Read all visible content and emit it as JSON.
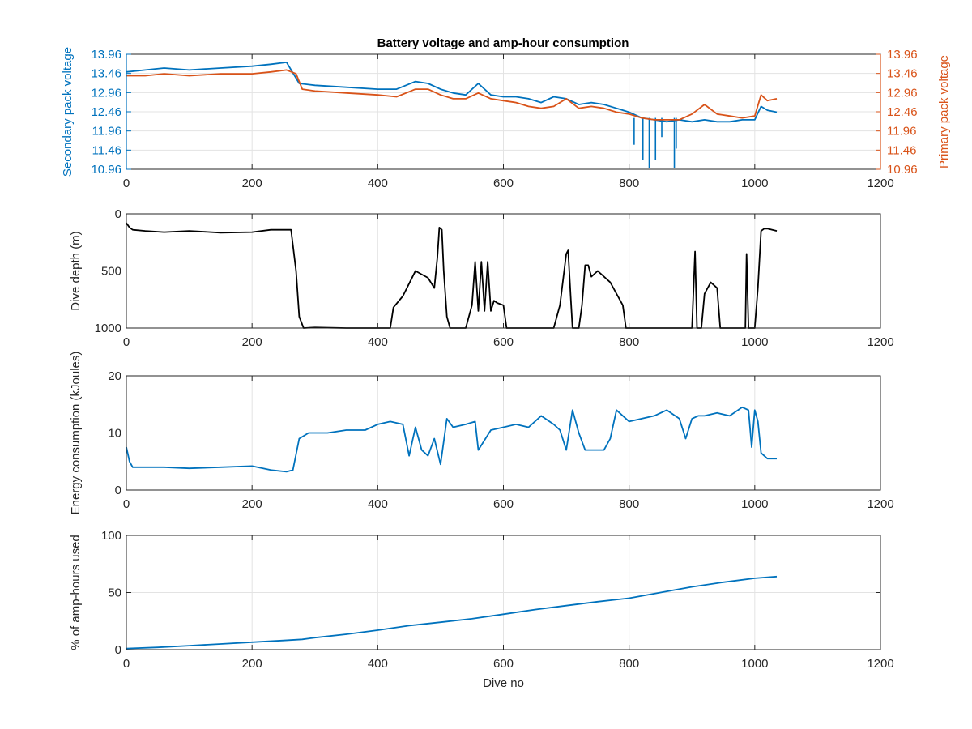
{
  "figure": {
    "title": "Battery voltage and amp-hour consumption"
  },
  "chart_data": [
    {
      "type": "line",
      "id": "voltage",
      "title": "Battery voltage and amp-hour consumption",
      "xlabel": "",
      "ylabel": "Secondary pack voltage",
      "ylabel_right": "Primary pack voltage",
      "xlim": [
        0,
        1200
      ],
      "ylim": [
        10.96,
        13.96
      ],
      "xticks": [
        0,
        200,
        400,
        600,
        800,
        1000,
        1200
      ],
      "yticks": [
        10.96,
        11.46,
        11.96,
        12.46,
        12.96,
        13.46,
        13.96
      ],
      "yticks_right": [
        10.96,
        11.46,
        11.96,
        12.46,
        12.96,
        13.46,
        13.96
      ],
      "grid": true,
      "series": [
        {
          "axis": "left",
          "color": "#0072BD",
          "x": [
            0,
            30,
            60,
            100,
            150,
            200,
            230,
            255,
            275,
            300,
            350,
            400,
            430,
            460,
            480,
            500,
            520,
            540,
            560,
            580,
            600,
            620,
            640,
            660,
            680,
            700,
            720,
            740,
            760,
            780,
            800,
            820,
            840,
            860,
            880,
            900,
            920,
            940,
            960,
            980,
            1000,
            1010,
            1020,
            1035
          ],
          "y": [
            13.5,
            13.55,
            13.6,
            13.55,
            13.6,
            13.65,
            13.7,
            13.75,
            13.2,
            13.15,
            13.1,
            13.05,
            13.05,
            13.25,
            13.2,
            13.05,
            12.95,
            12.9,
            13.2,
            12.9,
            12.85,
            12.85,
            12.8,
            12.7,
            12.85,
            12.8,
            12.65,
            12.7,
            12.65,
            12.55,
            12.45,
            12.3,
            12.25,
            12.2,
            12.25,
            12.2,
            12.25,
            12.2,
            12.2,
            12.25,
            12.25,
            12.6,
            12.5,
            12.45
          ],
          "spikes_x": [
            808,
            822,
            832,
            842,
            852,
            872,
            875
          ],
          "spikes_y": [
            11.6,
            11.2,
            11.0,
            11.2,
            11.8,
            11.0,
            11.5
          ]
        },
        {
          "axis": "right",
          "color": "#D95319",
          "x": [
            0,
            30,
            60,
            100,
            150,
            200,
            230,
            255,
            270,
            280,
            300,
            350,
            400,
            430,
            460,
            480,
            500,
            520,
            540,
            560,
            580,
            600,
            620,
            640,
            660,
            680,
            700,
            720,
            740,
            760,
            780,
            800,
            820,
            840,
            860,
            880,
            900,
            920,
            940,
            960,
            980,
            1000,
            1010,
            1020,
            1035
          ],
          "y": [
            13.4,
            13.4,
            13.45,
            13.4,
            13.45,
            13.45,
            13.5,
            13.55,
            13.45,
            13.05,
            13.0,
            12.95,
            12.9,
            12.85,
            13.05,
            13.05,
            12.9,
            12.8,
            12.8,
            12.95,
            12.8,
            12.75,
            12.7,
            12.6,
            12.55,
            12.6,
            12.8,
            12.55,
            12.6,
            12.55,
            12.45,
            12.4,
            12.3,
            12.25,
            12.25,
            12.25,
            12.4,
            12.65,
            12.4,
            12.35,
            12.3,
            12.35,
            12.9,
            12.75,
            12.8
          ]
        }
      ]
    },
    {
      "type": "line",
      "id": "depth",
      "xlabel": "",
      "ylabel": "Dive depth (m)",
      "xlim": [
        0,
        1200
      ],
      "ylim": [
        0,
        1000
      ],
      "y_reversed": true,
      "xticks": [
        0,
        200,
        400,
        600,
        800,
        1000,
        1200
      ],
      "yticks": [
        0,
        500,
        1000
      ],
      "grid": true,
      "series": [
        {
          "color": "#000000",
          "x": [
            0,
            5,
            10,
            30,
            60,
            100,
            150,
            200,
            230,
            262,
            270,
            275,
            282,
            300,
            350,
            400,
            420,
            425,
            440,
            460,
            480,
            490,
            495,
            498,
            502,
            505,
            510,
            515,
            520,
            540,
            550,
            555,
            560,
            565,
            570,
            575,
            580,
            585,
            590,
            600,
            605,
            610,
            650,
            680,
            690,
            700,
            703,
            707,
            710,
            720,
            725,
            730,
            735,
            740,
            750,
            770,
            790,
            795,
            800,
            850,
            895,
            900,
            905,
            908,
            910,
            915,
            920,
            930,
            940,
            945,
            950,
            980,
            985,
            987,
            990,
            995,
            1000,
            1005,
            1010,
            1015,
            1020,
            1035
          ],
          "y": [
            80,
            120,
            140,
            150,
            160,
            150,
            165,
            160,
            140,
            140,
            500,
            900,
            1000,
            995,
            1000,
            1000,
            1000,
            820,
            720,
            500,
            560,
            650,
            380,
            120,
            140,
            500,
            900,
            1000,
            1000,
            1000,
            800,
            420,
            850,
            420,
            850,
            420,
            850,
            760,
            780,
            800,
            1000,
            1000,
            1000,
            1000,
            800,
            350,
            320,
            720,
            1000,
            1000,
            800,
            450,
            450,
            550,
            500,
            600,
            800,
            1000,
            1000,
            1000,
            1000,
            1000,
            330,
            1000,
            1000,
            1000,
            700,
            600,
            650,
            1000,
            1000,
            1000,
            1000,
            350,
            1000,
            1000,
            1000,
            650,
            150,
            130,
            130,
            150
          ]
        }
      ]
    },
    {
      "type": "line",
      "id": "energy",
      "xlabel": "",
      "ylabel": "Energy consumption (kJoules)",
      "xlim": [
        0,
        1200
      ],
      "ylim": [
        0,
        20
      ],
      "xticks": [
        0,
        200,
        400,
        600,
        800,
        1000,
        1200
      ],
      "yticks": [
        0,
        10,
        20
      ],
      "grid": true,
      "series": [
        {
          "color": "#0072BD",
          "x": [
            0,
            5,
            10,
            30,
            60,
            100,
            150,
            200,
            230,
            255,
            265,
            275,
            290,
            320,
            350,
            380,
            400,
            420,
            440,
            450,
            460,
            470,
            480,
            490,
            500,
            510,
            520,
            540,
            555,
            560,
            580,
            600,
            620,
            640,
            660,
            680,
            690,
            700,
            710,
            720,
            730,
            740,
            760,
            770,
            780,
            800,
            820,
            840,
            860,
            880,
            890,
            900,
            910,
            920,
            940,
            960,
            980,
            990,
            995,
            1000,
            1005,
            1010,
            1020,
            1035
          ],
          "y": [
            7.5,
            5.0,
            4.0,
            4.0,
            4.0,
            3.8,
            4.0,
            4.2,
            3.5,
            3.2,
            3.5,
            9.0,
            10.0,
            10.0,
            10.5,
            10.5,
            11.5,
            12.0,
            11.5,
            6.0,
            11.0,
            7.0,
            6.0,
            9.0,
            4.5,
            12.5,
            11.0,
            11.5,
            12.0,
            7.0,
            10.5,
            11.0,
            11.5,
            11.0,
            13.0,
            11.5,
            10.5,
            7.0,
            14.0,
            10.0,
            7.0,
            7.0,
            7.0,
            9.0,
            14.0,
            12.0,
            12.5,
            13.0,
            14.0,
            12.5,
            9.0,
            12.5,
            13.0,
            13.0,
            13.5,
            13.0,
            14.5,
            14.0,
            7.5,
            14.0,
            12.0,
            6.5,
            5.5,
            5.5
          ]
        }
      ]
    },
    {
      "type": "line",
      "id": "amphours",
      "xlabel": "Dive no",
      "ylabel": "% of amp-hours used",
      "xlim": [
        0,
        1200
      ],
      "ylim": [
        0,
        100
      ],
      "xticks": [
        0,
        200,
        400,
        600,
        800,
        1000,
        1200
      ],
      "yticks": [
        0,
        50,
        100
      ],
      "grid": true,
      "series": [
        {
          "color": "#0072BD",
          "x": [
            0,
            50,
            100,
            150,
            200,
            250,
            280,
            300,
            350,
            400,
            450,
            500,
            550,
            600,
            650,
            700,
            750,
            800,
            850,
            900,
            950,
            1000,
            1035
          ],
          "y": [
            1,
            2,
            3.5,
            5,
            6.5,
            8,
            9,
            10.5,
            13.5,
            17,
            21,
            24,
            27,
            31,
            35,
            38.5,
            42,
            45,
            50,
            55,
            59,
            62.5,
            64
          ]
        }
      ]
    }
  ]
}
